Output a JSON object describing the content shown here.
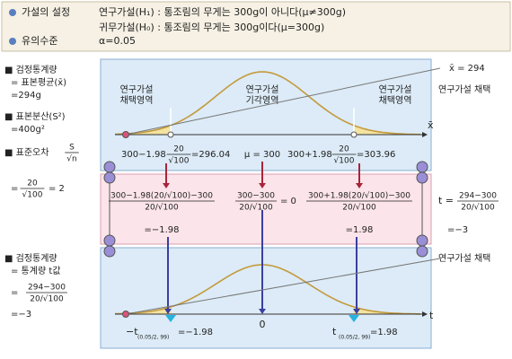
{
  "hypothesis": {
    "label": "가설의 설정",
    "h1": "연구가설(H₁) : 통조림의 무게는 300g이 아니다(μ≠300g)",
    "h0": "귀무가설(H₀) : 통조림의 무게는 300g이다(μ=300g)"
  },
  "significance": {
    "label": "유의수준",
    "value": "α=0.05"
  },
  "left": {
    "test_stat": {
      "title": "■ 검정통계량",
      "line1": "= 표본평균(x̄)",
      "line2": "=294g"
    },
    "variance": {
      "title": "■ 표본분산(S²)",
      "line1": "=400g²"
    },
    "std_error": {
      "title": "■ 표준오차",
      "frac_num": "S",
      "frac_den": "√n",
      "eq": "=",
      "num": "20",
      "den": "√100",
      "result": "= 2"
    },
    "t_stat": {
      "title": "■ 검정통계량",
      "line1": "= 통계량 t값",
      "eq": "=",
      "num": "294−300",
      "den": "20/√100",
      "result": "=−3"
    }
  },
  "panel1": {
    "regions": [
      {
        "line1": "연구가설",
        "line2": "채택영역"
      },
      {
        "line1": "연구가설",
        "line2": "기각영역"
      },
      {
        "line1": "연구가설",
        "line2": "채택영역"
      }
    ],
    "axis_label": "x̄",
    "lower": {
      "prefix": "300−1.98",
      "num": "20",
      "den": "√100",
      "result": "=296.04"
    },
    "center": "μ = 300",
    "upper": {
      "prefix": "300+1.98",
      "num": "20",
      "den": "√100",
      "result": "=303.96"
    },
    "marker_label": "x̄ = 294",
    "decision": "연구가설 채택"
  },
  "panel2": {
    "lower": {
      "num": "300−1.98(20/√100)−300",
      "den": "20/√100",
      "result": "=−1.98"
    },
    "center": {
      "num": "300−300",
      "den": "20/√100",
      "result": "= 0"
    },
    "upper": {
      "num": "300+1.98(20/√100)−300",
      "den": "20/√100",
      "result": "=1.98"
    },
    "t": {
      "prefix": "t =",
      "num": "294−300",
      "den": "20/√100",
      "result": "=−3"
    }
  },
  "panel3": {
    "decision": "연구가설 채택",
    "lower": {
      "prefix": "−t",
      "sub": "(0.05/2, 99)",
      "result": "=−1.98"
    },
    "center": "0",
    "upper": {
      "prefix": "t",
      "sub": "(0.05/2, 99)",
      "result": "=1.98"
    },
    "axis_label": "t"
  }
}
